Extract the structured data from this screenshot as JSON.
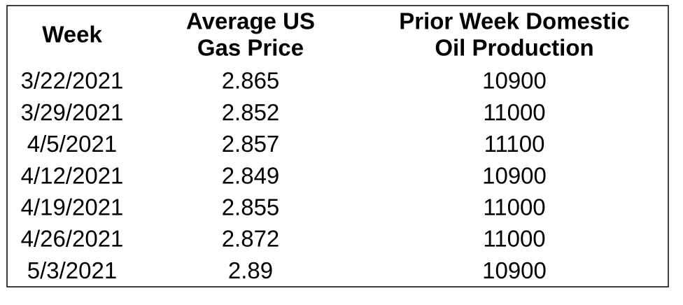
{
  "table": {
    "headers": [
      [
        "Week"
      ],
      [
        "Average US",
        "Gas Price"
      ],
      [
        "Prior Week Domestic",
        "Oil Production"
      ]
    ],
    "rows": [
      [
        "3/22/2021",
        "2.865",
        "10900"
      ],
      [
        "3/29/2021",
        "2.852",
        "11000"
      ],
      [
        "4/5/2021",
        "2.857",
        "11100"
      ],
      [
        "4/12/2021",
        "2.849",
        "10900"
      ],
      [
        "4/19/2021",
        "2.855",
        "11000"
      ],
      [
        "4/26/2021",
        "2.872",
        "11000"
      ],
      [
        "5/3/2021",
        "2.89",
        "10900"
      ]
    ]
  }
}
